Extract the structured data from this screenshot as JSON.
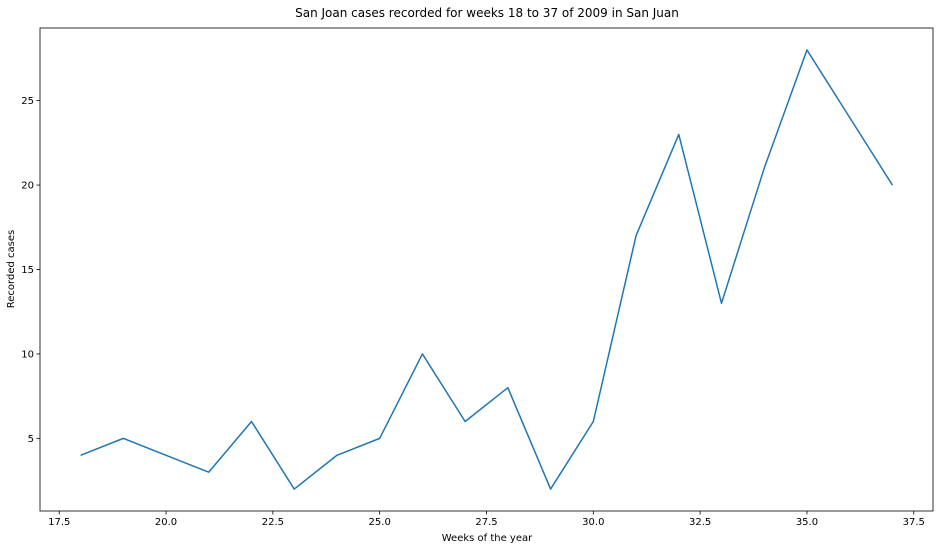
{
  "chart_data": {
    "type": "line",
    "title": "San Joan cases recorded for weeks 18 to 37 of 2009 in San Juan",
    "xlabel": "Weeks of the year",
    "ylabel": "Recorded cases",
    "x": [
      18,
      19,
      20,
      21,
      22,
      23,
      24,
      25,
      26,
      27,
      28,
      29,
      30,
      31,
      32,
      33,
      34,
      35,
      36,
      37
    ],
    "series": [
      {
        "values": [
          4,
          5,
          4,
          3,
          6,
          2,
          4,
          5,
          10,
          6,
          8,
          2,
          6,
          17,
          23,
          13,
          21,
          28,
          24,
          20
        ],
        "color": "#1f77b4"
      }
    ],
    "xlim": [
      17.05,
      37.95
    ],
    "ylim": [
      0.7,
      29.3
    ],
    "xticks": [
      17.5,
      20.0,
      22.5,
      25.0,
      27.5,
      30.0,
      32.5,
      35.0,
      37.5
    ],
    "xtick_labels": [
      "17.5",
      "20.0",
      "22.5",
      "25.0",
      "27.5",
      "30.0",
      "32.5",
      "35.0",
      "37.5"
    ],
    "yticks": [
      5,
      10,
      15,
      20,
      25
    ],
    "ytick_labels": [
      "5",
      "10",
      "15",
      "20",
      "25"
    ],
    "grid": false,
    "legend": false
  }
}
